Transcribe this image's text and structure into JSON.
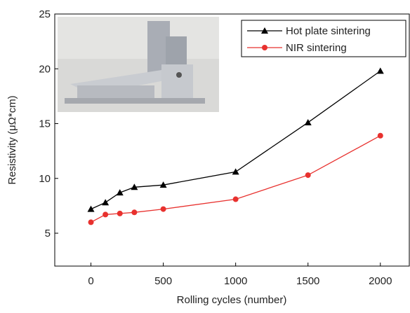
{
  "chart_data": {
    "type": "line",
    "x_label": "Rolling cycles (number)",
    "y_label": "Resistivity (μΩ*cm)",
    "x": [
      0,
      100,
      200,
      300,
      500,
      1000,
      1500,
      2000
    ],
    "series": [
      {
        "name": "Hot plate sintering",
        "color": "#000000",
        "marker": "triangle",
        "values": [
          7.2,
          7.8,
          8.7,
          9.2,
          9.4,
          10.6,
          15.1,
          19.8
        ]
      },
      {
        "name": "NIR sintering",
        "color": "#e8312e",
        "marker": "circle",
        "values": [
          6.0,
          6.7,
          6.8,
          6.9,
          7.2,
          8.1,
          10.3,
          13.9
        ]
      }
    ],
    "xlim": [
      -250,
      2200
    ],
    "xticks": [
      0,
      500,
      1000,
      1500,
      2000
    ],
    "ylim": [
      2,
      25
    ],
    "yticks": [
      5,
      10,
      15,
      20,
      25
    ],
    "legend": "upper-right"
  }
}
